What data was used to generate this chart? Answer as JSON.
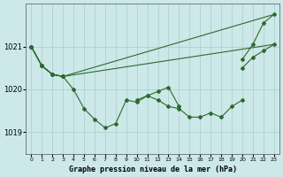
{
  "title": "Graphe pression niveau de la mer (hPa)",
  "bg_color": "#cce8e8",
  "grid_color": "#aacccc",
  "line_color": "#2d6a2d",
  "x_ticks": [
    0,
    1,
    2,
    3,
    4,
    5,
    6,
    7,
    8,
    9,
    10,
    11,
    12,
    13,
    14,
    15,
    16,
    17,
    18,
    19,
    20,
    21,
    22,
    23
  ],
  "ylim": [
    1018.5,
    1022.0
  ],
  "yticks": [
    1019,
    1020,
    1021
  ],
  "series": [
    [
      1021.0,
      1020.55,
      1020.35,
      1020.3,
      null,
      null,
      null,
      null,
      null,
      null,
      null,
      null,
      null,
      null,
      null,
      null,
      null,
      null,
      null,
      null,
      1020.7,
      1021.05,
      1021.55,
      1021.75
    ],
    [
      1021.0,
      1020.55,
      1020.35,
      1020.3,
      null,
      null,
      null,
      null,
      null,
      null,
      null,
      null,
      null,
      null,
      null,
      null,
      null,
      null,
      null,
      null,
      1020.5,
      1020.75,
      1020.9,
      1021.05
    ],
    [
      1021.0,
      1020.55,
      1020.35,
      1020.3,
      1020.0,
      1019.55,
      1019.3,
      1019.1,
      1019.2,
      1019.75,
      1019.7,
      1019.85,
      1019.75,
      1019.6,
      1019.55,
      1019.35,
      1019.35,
      1019.45,
      1019.35,
      1019.6,
      1019.75,
      null,
      null,
      null
    ],
    [
      1021.0,
      1020.55,
      1020.35,
      1020.3,
      null,
      null,
      null,
      null,
      null,
      null,
      1019.75,
      1019.85,
      1019.95,
      1020.05,
      1019.6,
      null,
      null,
      null,
      null,
      null,
      null,
      null,
      null,
      null
    ]
  ],
  "straight_lines": [
    [
      [
        3,
        23
      ],
      [
        1020.3,
        1021.75
      ]
    ],
    [
      [
        3,
        23
      ],
      [
        1020.3,
        1021.05
      ]
    ]
  ]
}
